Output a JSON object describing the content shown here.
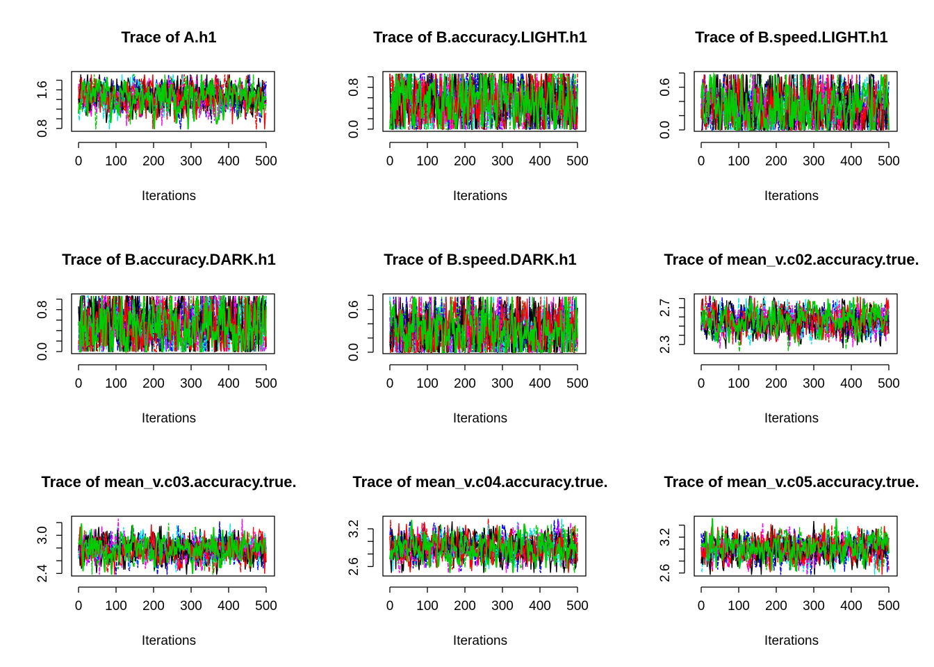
{
  "figure": {
    "layout": "3x3 grid of MCMC trace plots",
    "chains": 9
  },
  "colors": [
    "#000000",
    "#ff0000",
    "#00cd00",
    "#0000ff",
    "#00e5ee",
    "#ff00ff"
  ],
  "chart_data": [
    {
      "type": "line",
      "title": "Trace of A.h1",
      "xlabel": "Iterations",
      "xlim": [
        0,
        500
      ],
      "ylim": [
        0.74,
        1.98
      ],
      "xticks": [
        0,
        100,
        200,
        300,
        400,
        500
      ],
      "xtick_labels": [
        "0",
        "100",
        "200",
        "300",
        "400",
        "500"
      ],
      "yticks": [
        0.8,
        1.0,
        1.2,
        1.4,
        1.6,
        1.8
      ],
      "ytick_labels": [
        "0.8",
        "",
        "",
        "",
        "1.6",
        ""
      ],
      "series_center": 1.45,
      "series_spread": 0.2,
      "series_min": 0.78,
      "series_max": 1.92
    },
    {
      "type": "line",
      "title": "Trace of B.accuracy.LIGHT.h1",
      "xlabel": "Iterations",
      "xlim": [
        0,
        500
      ],
      "ylim": [
        -0.04,
        1.1
      ],
      "xticks": [
        0,
        100,
        200,
        300,
        400,
        500
      ],
      "xtick_labels": [
        "0",
        "100",
        "200",
        "300",
        "400",
        "500"
      ],
      "yticks": [
        0.0,
        0.2,
        0.4,
        0.6,
        0.8,
        1.0
      ],
      "ytick_labels": [
        "0.0",
        "",
        "",
        "",
        "0.8",
        ""
      ],
      "series_center": 0.5,
      "series_spread": 0.35,
      "series_min": 0.0,
      "series_max": 1.06
    },
    {
      "type": "line",
      "title": "Trace of B.speed.LIGHT.h1",
      "xlabel": "Iterations",
      "xlim": [
        0,
        500
      ],
      "ylim": [
        -0.02,
        0.82
      ],
      "xticks": [
        0,
        100,
        200,
        300,
        400,
        500
      ],
      "xtick_labels": [
        "0",
        "100",
        "200",
        "300",
        "400",
        "500"
      ],
      "yticks": [
        0.0,
        0.2,
        0.4,
        0.6,
        0.8
      ],
      "ytick_labels": [
        "0.0",
        "",
        "",
        "0.6",
        ""
      ],
      "series_center": 0.3,
      "series_spread": 0.25,
      "series_min": 0.0,
      "series_max": 0.78
    },
    {
      "type": "line",
      "title": "Trace of B.accuracy.DARK.h1",
      "xlabel": "Iterations",
      "xlim": [
        0,
        500
      ],
      "ylim": [
        -0.04,
        1.1
      ],
      "xticks": [
        0,
        100,
        200,
        300,
        400,
        500
      ],
      "xtick_labels": [
        "0",
        "100",
        "200",
        "300",
        "400",
        "500"
      ],
      "yticks": [
        0.0,
        0.2,
        0.4,
        0.6,
        0.8,
        1.0
      ],
      "ytick_labels": [
        "0.0",
        "",
        "",
        "",
        "0.8",
        ""
      ],
      "series_center": 0.5,
      "series_spread": 0.35,
      "series_min": 0.0,
      "series_max": 1.06
    },
    {
      "type": "line",
      "title": "Trace of B.speed.DARK.h1",
      "xlabel": "Iterations",
      "xlim": [
        0,
        500
      ],
      "ylim": [
        -0.02,
        0.82
      ],
      "xticks": [
        0,
        100,
        200,
        300,
        400,
        500
      ],
      "xtick_labels": [
        "0",
        "100",
        "200",
        "300",
        "400",
        "500"
      ],
      "yticks": [
        0.0,
        0.2,
        0.4,
        0.6,
        0.8
      ],
      "ytick_labels": [
        "0.0",
        "",
        "",
        "0.6",
        ""
      ],
      "series_center": 0.3,
      "series_spread": 0.25,
      "series_min": 0.0,
      "series_max": 0.78
    },
    {
      "type": "line",
      "title": "Trace of mean_v.c02.accuracy.true.",
      "xlabel": "Iterations",
      "xlim": [
        0,
        500
      ],
      "ylim": [
        2.2,
        2.85
      ],
      "xticks": [
        0,
        100,
        200,
        300,
        400,
        500
      ],
      "xtick_labels": [
        "0",
        "100",
        "200",
        "300",
        "400",
        "500"
      ],
      "yticks": [
        2.3,
        2.4,
        2.5,
        2.6,
        2.7,
        2.8
      ],
      "ytick_labels": [
        "2.3",
        "",
        "",
        "",
        "2.7",
        ""
      ],
      "series_center": 2.55,
      "series_spread": 0.1,
      "series_min": 2.22,
      "series_max": 2.83
    },
    {
      "type": "line",
      "title": "Trace of mean_v.c03.accuracy.true.",
      "xlabel": "Iterations",
      "xlim": [
        0,
        500
      ],
      "ylim": [
        2.36,
        3.3
      ],
      "xticks": [
        0,
        100,
        200,
        300,
        400,
        500
      ],
      "xtick_labels": [
        "0",
        "100",
        "200",
        "300",
        "400",
        "500"
      ],
      "yticks": [
        2.4,
        2.6,
        2.8,
        3.0,
        3.2
      ],
      "ytick_labels": [
        "2.4",
        "",
        "",
        "3.0",
        ""
      ],
      "series_center": 2.78,
      "series_spread": 0.14,
      "series_min": 2.38,
      "series_max": 3.26
    },
    {
      "type": "line",
      "title": "Trace of mean_v.c04.accuracy.true.",
      "xlabel": "Iterations",
      "xlim": [
        0,
        500
      ],
      "ylim": [
        2.45,
        3.4
      ],
      "xticks": [
        0,
        100,
        200,
        300,
        400,
        500
      ],
      "xtick_labels": [
        "0",
        "100",
        "200",
        "300",
        "400",
        "500"
      ],
      "yticks": [
        2.6,
        2.8,
        3.0,
        3.2
      ],
      "ytick_labels": [
        "2.6",
        "",
        "",
        "3.2"
      ],
      "series_center": 2.9,
      "series_spread": 0.15,
      "series_min": 2.5,
      "series_max": 3.36
    },
    {
      "type": "line",
      "title": "Trace of mean_v.c05.accuracy.true.",
      "xlabel": "Iterations",
      "xlim": [
        0,
        500
      ],
      "ylim": [
        2.55,
        3.55
      ],
      "xticks": [
        0,
        100,
        200,
        300,
        400,
        500
      ],
      "xtick_labels": [
        "0",
        "100",
        "200",
        "300",
        "400",
        "500"
      ],
      "yticks": [
        2.6,
        2.8,
        3.0,
        3.2,
        3.4
      ],
      "ytick_labels": [
        "2.6",
        "",
        "",
        "3.2",
        ""
      ],
      "series_center": 3.0,
      "series_spread": 0.15,
      "series_min": 2.57,
      "series_max": 3.52
    }
  ]
}
